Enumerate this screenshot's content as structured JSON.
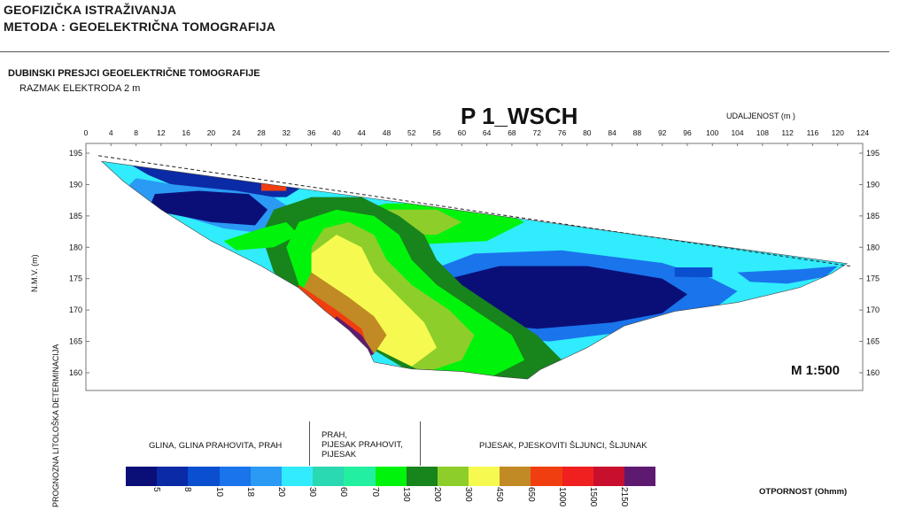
{
  "header": {
    "line1": "GEOFIZIČKA  ISTRAŽIVANJA",
    "line2": "METODA : GEOELEKTRIČNA TOMOGRAFIJA"
  },
  "section": {
    "title": "DUBINSKI PRESJCI GEOELEKTRIČNE TOMOGRAFIJE",
    "subtitle": "RAZMAK ELEKTRODA 2 m"
  },
  "chart_data": {
    "type": "heatmap",
    "title": "P 1_WSCH",
    "xlabel": "UDALJENOST (m )",
    "ylabel": "N.M.V. (m)",
    "scale": "M 1:500",
    "x_ticks": [
      0,
      4,
      8,
      12,
      16,
      20,
      24,
      28,
      32,
      36,
      40,
      44,
      48,
      52,
      56,
      60,
      64,
      68,
      72,
      76,
      80,
      84,
      88,
      92,
      96,
      100,
      104,
      108,
      112,
      116,
      120,
      124
    ],
    "y_ticks": [
      195,
      190,
      185,
      180,
      175,
      170,
      165,
      160
    ],
    "xlim": [
      0,
      124
    ],
    "ylim": [
      158,
      196
    ],
    "surface_line": [
      [
        2,
        194.6
      ],
      [
        122,
        177.0
      ]
    ],
    "section_outline": [
      [
        2.5,
        193.7
      ],
      [
        121.5,
        177.4
      ],
      [
        119,
        175.8
      ],
      [
        114,
        173.6
      ],
      [
        104,
        171.2
      ],
      [
        94,
        169.8
      ],
      [
        86,
        167.5
      ],
      [
        80,
        164.0
      ],
      [
        72.5,
        160.5
      ],
      [
        70.5,
        159.0
      ],
      [
        66,
        159.4
      ],
      [
        60,
        160.2
      ],
      [
        52,
        160.6
      ],
      [
        46,
        161.7
      ],
      [
        45,
        163.8
      ],
      [
        42,
        166.8
      ],
      [
        38,
        170.0
      ],
      [
        34,
        173.5
      ],
      [
        28,
        177.0
      ],
      [
        20,
        181.0
      ],
      [
        12,
        186.0
      ],
      [
        6,
        190.5
      ],
      [
        2.5,
        193.7
      ]
    ],
    "resistivity_scale": {
      "unit_label": "OTPORNOST (Ohmm)",
      "values": [
        "5",
        "8",
        "10",
        "18",
        "20",
        "30",
        "60",
        "70",
        "130",
        "200",
        "300",
        "450",
        "650",
        "1000",
        "1500",
        "2150"
      ],
      "colors": [
        "#0a0f78",
        "#0b2aa6",
        "#0a4fd0",
        "#1a74ec",
        "#2a9af5",
        "#30ecfc",
        "#2ad8b2",
        "#22f0a0",
        "#00f40b",
        "#18841c",
        "#8ece2a",
        "#f6fa50",
        "#c28a24",
        "#f03e10",
        "#f02020",
        "#c90f2e",
        "#5e1a70"
      ]
    }
  },
  "lithology": {
    "axis_label": "PROGNOZNA LITOLOŠKA DETERMINACIJA",
    "zone1": "GLINA, GLINA PRAHOVITA, PRAH",
    "zone2_lines": [
      "PRAH,",
      "PIJESAK PRAHOVIT,",
      "PIJESAK"
    ],
    "zone3": "PIJESAK, PJESKOVITI ŠLJUNCI, ŠLJUNAK"
  }
}
